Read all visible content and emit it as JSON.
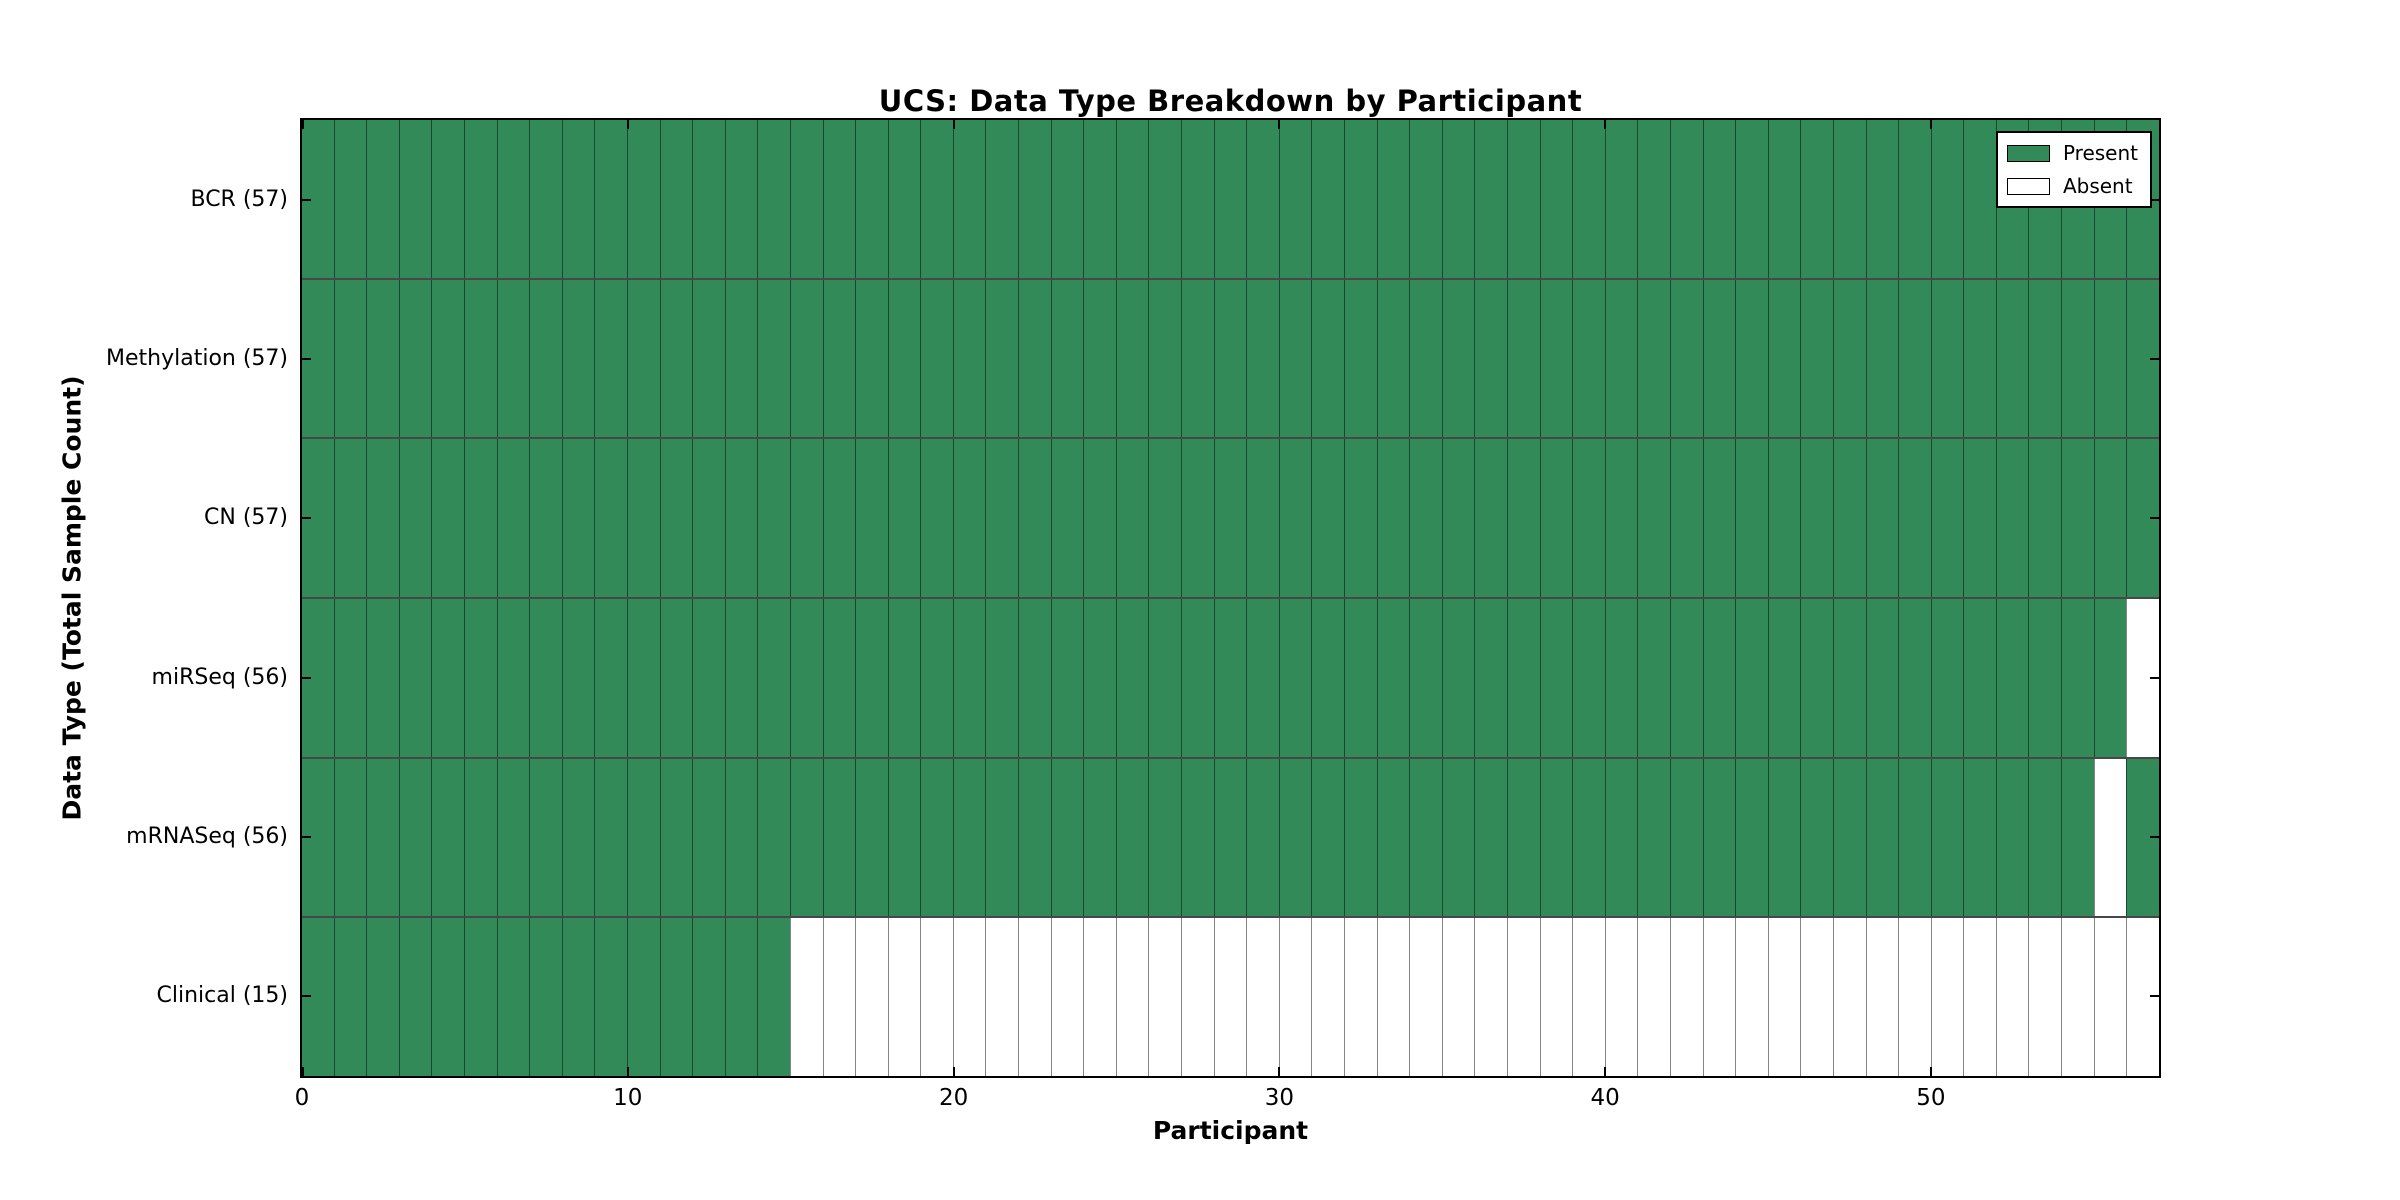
{
  "chart_data": {
    "type": "heatmap",
    "title": "UCS: Data Type Breakdown by Participant",
    "xlabel": "Participant",
    "ylabel": "Data Type (Total Sample Count)",
    "x_ticks": [
      0,
      10,
      20,
      30,
      40,
      50
    ],
    "x_range": [
      0,
      57
    ],
    "n_participants": 57,
    "grid": false,
    "legend_position": "upper right",
    "legend": [
      {
        "label": "Present",
        "color": "#318a58"
      },
      {
        "label": "Absent",
        "color": "#ffffff"
      }
    ],
    "colors": {
      "present": "#318a58",
      "absent": "#ffffff",
      "cell_border": "rgba(0,0,0,0.48)",
      "row_border": "rgba(0,0,0,0.72)",
      "spine": "#000000"
    },
    "rows": [
      {
        "label": "BCR (57)",
        "data_type": "BCR",
        "total_samples": 57,
        "absent_participants": []
      },
      {
        "label": "Methylation (57)",
        "data_type": "Methylation",
        "total_samples": 57,
        "absent_participants": []
      },
      {
        "label": "CN (57)",
        "data_type": "CN",
        "total_samples": 57,
        "absent_participants": []
      },
      {
        "label": "miRSeq (56)",
        "data_type": "miRSeq",
        "total_samples": 56,
        "absent_participants": [
          56
        ]
      },
      {
        "label": "mRNASeq (56)",
        "data_type": "mRNASeq",
        "total_samples": 56,
        "absent_participants": [
          55
        ]
      },
      {
        "label": "Clinical (15)",
        "data_type": "Clinical",
        "total_samples": 15,
        "absent_participants": [
          15,
          16,
          17,
          18,
          19,
          20,
          21,
          22,
          23,
          24,
          25,
          26,
          27,
          28,
          29,
          30,
          31,
          32,
          33,
          34,
          35,
          36,
          37,
          38,
          39,
          40,
          41,
          42,
          43,
          44,
          45,
          46,
          47,
          48,
          49,
          50,
          51,
          52,
          53,
          54,
          55,
          56
        ]
      }
    ]
  }
}
